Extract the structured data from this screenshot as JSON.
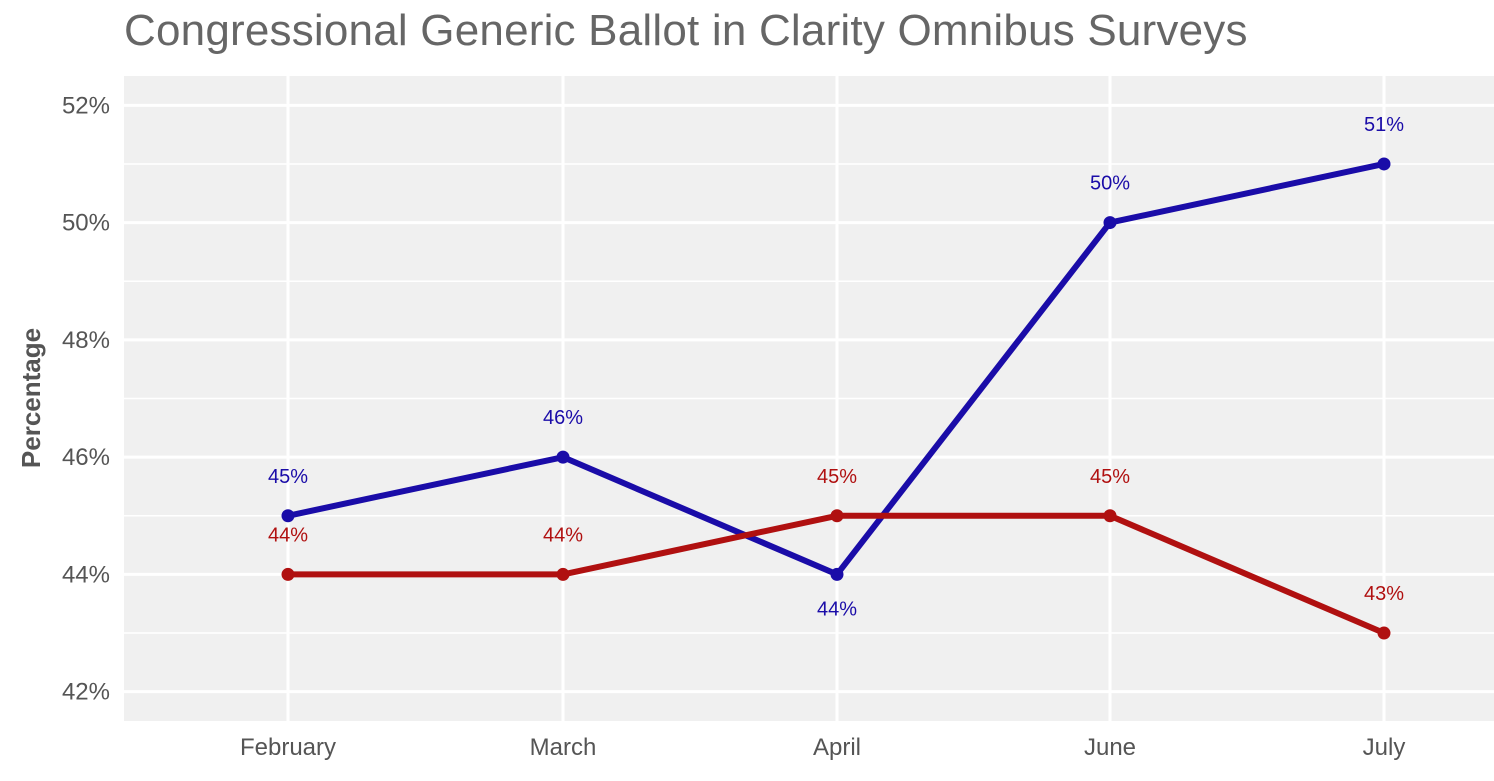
{
  "chart_data": {
    "type": "line",
    "title": "Congressional Generic Ballot in Clarity Omnibus Surveys",
    "xlabel": "",
    "ylabel": "Percentage",
    "categories": [
      "February",
      "March",
      "April",
      "June",
      "July"
    ],
    "ylim": [
      41.5,
      52.5
    ],
    "yticks": [
      42,
      44,
      46,
      48,
      50,
      52
    ],
    "ytick_labels": [
      "42%",
      "44%",
      "46%",
      "48%",
      "50%",
      "52%"
    ],
    "grid": true,
    "legend": "none",
    "series": [
      {
        "color": "#1a0ca8",
        "values": [
          45,
          46,
          44,
          50,
          51
        ],
        "labels": [
          "45%",
          "46%",
          "44%",
          "50%",
          "51%"
        ],
        "label_positions": [
          "above",
          "above",
          "below",
          "above",
          "above"
        ]
      },
      {
        "color": "#b01010",
        "values": [
          44,
          44,
          45,
          45,
          43
        ],
        "labels": [
          "44%",
          "44%",
          "45%",
          "45%",
          "43%"
        ],
        "label_positions": [
          "above",
          "above",
          "above",
          "above",
          "above"
        ]
      }
    ]
  }
}
